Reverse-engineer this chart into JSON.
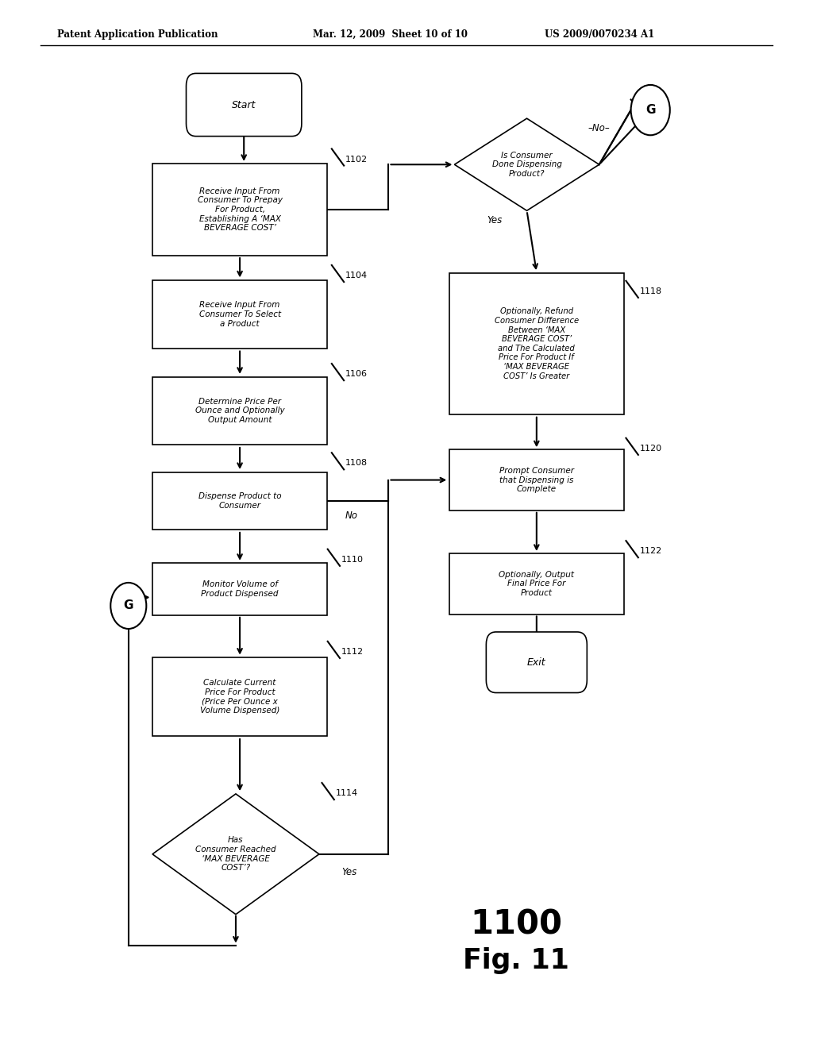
{
  "title_line1": "Patent Application Publication",
  "title_line2": "Mar. 12, 2009  Sheet 10 of 10",
  "title_line3": "US 2009/0070234 A1",
  "fig_label": "1100",
  "fig_number": "Fig. 11",
  "background": "#ffffff"
}
